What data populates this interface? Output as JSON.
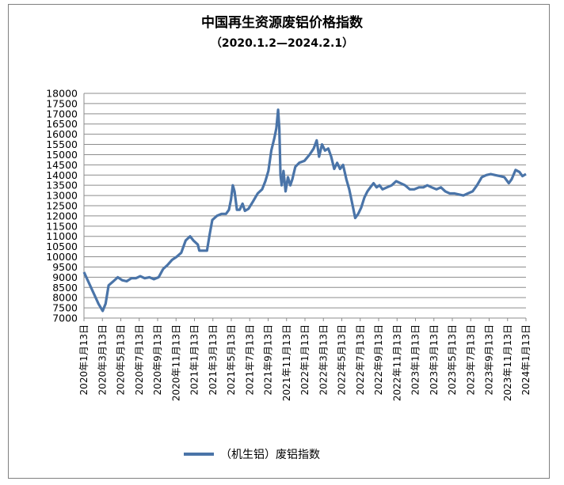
{
  "chart_data": {
    "type": "line",
    "title": "中国再生资源废铝价格指数",
    "subtitle": "（2020.1.2—2024.2.1）",
    "ylim": [
      7000,
      18000
    ],
    "ystep": 500,
    "grid": true,
    "legend_position": "bottom",
    "x_tick_labels": [
      "2020年1月13日",
      "2020年3月13日",
      "2020年5月13日",
      "2020年7月13日",
      "2020年9月13日",
      "2020年11月13日",
      "2021年1月13日",
      "2021年3月13日",
      "2021年5月13日",
      "2021年7月13日",
      "2021年9月13日",
      "2021年11月13日",
      "2022年1月13日",
      "2022年3月13日",
      "2022年5月13日",
      "2022年7月13日",
      "2022年9月13日",
      "2022年11月13日",
      "2023年1月13日",
      "2023年3月13日",
      "2023年5月13日",
      "2023年7月13日",
      "2023年9月13日",
      "2023年11月13日",
      "2024年1月13日"
    ],
    "series": [
      {
        "name": "（机生铝）废铝指数",
        "color": "#4a74a8",
        "points": [
          [
            "2020-01-02",
            9250
          ],
          [
            "2020-02-20",
            7700
          ],
          [
            "2020-03-05",
            7350
          ],
          [
            "2020-03-15",
            7700
          ],
          [
            "2020-03-25",
            8600
          ],
          [
            "2020-04-10",
            8800
          ],
          [
            "2020-04-25",
            9000
          ],
          [
            "2020-05-10",
            8850
          ],
          [
            "2020-05-25",
            8800
          ],
          [
            "2020-06-10",
            8950
          ],
          [
            "2020-06-25",
            8950
          ],
          [
            "2020-07-10",
            9050
          ],
          [
            "2020-07-25",
            8950
          ],
          [
            "2020-08-10",
            9000
          ],
          [
            "2020-08-25",
            8900
          ],
          [
            "2020-09-10",
            9000
          ],
          [
            "2020-09-25",
            9400
          ],
          [
            "2020-10-10",
            9600
          ],
          [
            "2020-10-25",
            9850
          ],
          [
            "2020-11-10",
            10000
          ],
          [
            "2020-11-25",
            10200
          ],
          [
            "2020-12-10",
            10800
          ],
          [
            "2020-12-25",
            11000
          ],
          [
            "2021-01-05",
            10800
          ],
          [
            "2021-01-20",
            10600
          ],
          [
            "2021-01-25",
            10300
          ],
          [
            "2021-02-20",
            10300
          ],
          [
            "2021-03-01",
            11100
          ],
          [
            "2021-03-10",
            11800
          ],
          [
            "2021-03-25",
            12000
          ],
          [
            "2021-04-10",
            12100
          ],
          [
            "2021-04-25",
            12100
          ],
          [
            "2021-05-05",
            12300
          ],
          [
            "2021-05-12",
            12800
          ],
          [
            "2021-05-18",
            13500
          ],
          [
            "2021-05-24",
            13200
          ],
          [
            "2021-06-01",
            12300
          ],
          [
            "2021-06-10",
            12300
          ],
          [
            "2021-06-20",
            12600
          ],
          [
            "2021-06-28",
            12250
          ],
          [
            "2021-07-10",
            12350
          ],
          [
            "2021-07-25",
            12700
          ],
          [
            "2021-08-10",
            13100
          ],
          [
            "2021-08-25",
            13300
          ],
          [
            "2021-09-05",
            13700
          ],
          [
            "2021-09-15",
            14200
          ],
          [
            "2021-09-25",
            15200
          ],
          [
            "2021-10-05",
            15800
          ],
          [
            "2021-10-12",
            16300
          ],
          [
            "2021-10-18",
            17200
          ],
          [
            "2021-10-22",
            16300
          ],
          [
            "2021-10-26",
            14000
          ],
          [
            "2021-10-30",
            13500
          ],
          [
            "2021-11-05",
            14200
          ],
          [
            "2021-11-12",
            13200
          ],
          [
            "2021-11-20",
            13900
          ],
          [
            "2021-11-28",
            13500
          ],
          [
            "2021-12-05",
            13800
          ],
          [
            "2021-12-15",
            14400
          ],
          [
            "2021-12-28",
            14600
          ],
          [
            "2022-01-15",
            14700
          ],
          [
            "2022-02-01",
            15000
          ],
          [
            "2022-02-15",
            15300
          ],
          [
            "2022-02-25",
            15700
          ],
          [
            "2022-03-05",
            14900
          ],
          [
            "2022-03-15",
            15500
          ],
          [
            "2022-03-25",
            15200
          ],
          [
            "2022-04-05",
            15300
          ],
          [
            "2022-04-15",
            14900
          ],
          [
            "2022-04-25",
            14300
          ],
          [
            "2022-05-05",
            14600
          ],
          [
            "2022-05-15",
            14300
          ],
          [
            "2022-05-25",
            14500
          ],
          [
            "2022-06-05",
            13800
          ],
          [
            "2022-06-15",
            13300
          ],
          [
            "2022-06-25",
            12600
          ],
          [
            "2022-07-05",
            11900
          ],
          [
            "2022-07-15",
            12100
          ],
          [
            "2022-07-25",
            12400
          ],
          [
            "2022-08-05",
            12900
          ],
          [
            "2022-08-15",
            13200
          ],
          [
            "2022-08-25",
            13400
          ],
          [
            "2022-09-05",
            13600
          ],
          [
            "2022-09-15",
            13400
          ],
          [
            "2022-09-25",
            13500
          ],
          [
            "2022-10-05",
            13300
          ],
          [
            "2022-10-20",
            13400
          ],
          [
            "2022-11-05",
            13500
          ],
          [
            "2022-11-20",
            13700
          ],
          [
            "2022-12-05",
            13600
          ],
          [
            "2022-12-20",
            13500
          ],
          [
            "2023-01-05",
            13300
          ],
          [
            "2023-01-20",
            13300
          ],
          [
            "2023-02-05",
            13400
          ],
          [
            "2023-02-20",
            13400
          ],
          [
            "2023-03-05",
            13500
          ],
          [
            "2023-03-20",
            13400
          ],
          [
            "2023-04-05",
            13300
          ],
          [
            "2023-04-20",
            13400
          ],
          [
            "2023-05-05",
            13200
          ],
          [
            "2023-05-20",
            13100
          ],
          [
            "2023-06-05",
            13100
          ],
          [
            "2023-06-20",
            13050
          ],
          [
            "2023-07-05",
            13000
          ],
          [
            "2023-07-20",
            13100
          ],
          [
            "2023-08-05",
            13200
          ],
          [
            "2023-08-20",
            13500
          ],
          [
            "2023-09-05",
            13900
          ],
          [
            "2023-09-20",
            14000
          ],
          [
            "2023-10-05",
            14050
          ],
          [
            "2023-10-20",
            14000
          ],
          [
            "2023-11-05",
            13950
          ],
          [
            "2023-11-20",
            13900
          ],
          [
            "2023-12-05",
            13600
          ],
          [
            "2023-12-15",
            13800
          ],
          [
            "2023-12-28",
            14250
          ],
          [
            "2024-01-10",
            14150
          ],
          [
            "2024-01-20",
            13950
          ],
          [
            "2024-02-01",
            14050
          ]
        ]
      }
    ]
  },
  "legend": {
    "label": "（机生铝）废铝指数"
  }
}
